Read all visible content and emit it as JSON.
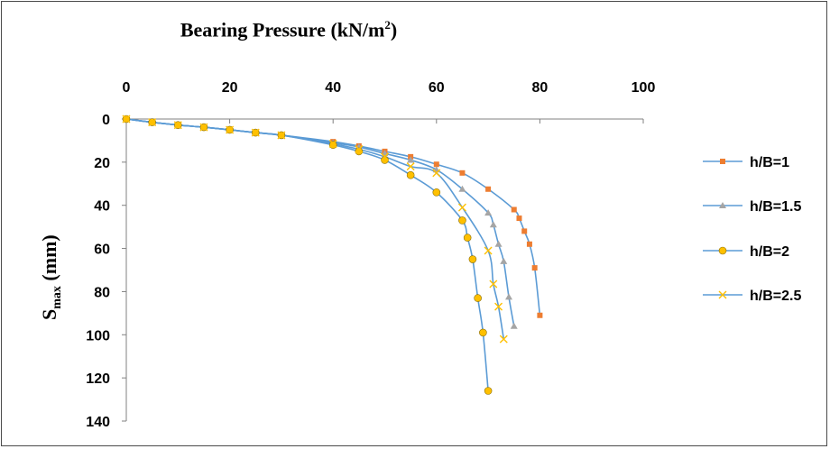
{
  "chart_data": {
    "type": "line",
    "title_main": "Bearing Pressure (kN/m",
    "title_sup": "2",
    "title_end": ")",
    "ylabel_main": "S",
    "ylabel_sub": "max",
    "ylabel_unit": " (mm)",
    "xlim": [
      0,
      100
    ],
    "ylim": [
      0,
      140
    ],
    "x_axis_position": "top",
    "y_axis_inverted": true,
    "x_ticks": [
      0,
      20,
      40,
      60,
      80,
      100
    ],
    "y_ticks": [
      0,
      20,
      40,
      60,
      80,
      100,
      120,
      140
    ],
    "grid": false,
    "legend_position": "right",
    "series": [
      {
        "name": "h/B=1",
        "color": "#5b9bd5",
        "marker": "square",
        "marker_color": "#ed7d31",
        "x": [
          0,
          5,
          10,
          15,
          20,
          25,
          30,
          40,
          45,
          50,
          55,
          60,
          65,
          70,
          75,
          76,
          77,
          78,
          79,
          80
        ],
        "y": [
          0,
          1.5,
          2.8,
          3.8,
          5,
          6.3,
          7.5,
          10.5,
          12.5,
          15,
          17.5,
          21,
          25,
          32.5,
          42,
          46,
          52,
          58,
          69,
          91
        ]
      },
      {
        "name": "h/B=1.5",
        "color": "#5b9bd5",
        "marker": "triangle",
        "marker_color": "#a5a5a5",
        "x": [
          0,
          5,
          10,
          15,
          20,
          25,
          30,
          40,
          45,
          50,
          55,
          60,
          65,
          70,
          71,
          72,
          73,
          74,
          75
        ],
        "y": [
          0,
          1.5,
          2.8,
          3.8,
          5,
          6.3,
          7.5,
          11,
          13,
          16,
          19,
          23.5,
          32.5,
          43.5,
          49,
          58,
          66,
          82.5,
          96
        ]
      },
      {
        "name": "h/B=2",
        "color": "#5b9bd5",
        "marker": "circle",
        "marker_color": "#ffc000",
        "x": [
          0,
          5,
          10,
          15,
          20,
          25,
          30,
          40,
          45,
          50,
          55,
          60,
          65,
          66,
          67,
          68,
          69,
          70
        ],
        "y": [
          0,
          1.5,
          2.8,
          3.8,
          5,
          6.3,
          7.5,
          12,
          15,
          19,
          26,
          34,
          47,
          55,
          65,
          83,
          99,
          126
        ]
      },
      {
        "name": "h/B=2.5",
        "color": "#5b9bd5",
        "marker": "x",
        "marker_color": "#ffc000",
        "x": [
          0,
          5,
          10,
          15,
          20,
          25,
          30,
          40,
          45,
          50,
          55,
          60,
          65,
          70,
          71,
          72,
          73
        ],
        "y": [
          0,
          1.5,
          2.8,
          3.8,
          5,
          6.3,
          7.5,
          11.5,
          14,
          17.5,
          22,
          25,
          41,
          61,
          76.5,
          87,
          102
        ]
      }
    ]
  }
}
